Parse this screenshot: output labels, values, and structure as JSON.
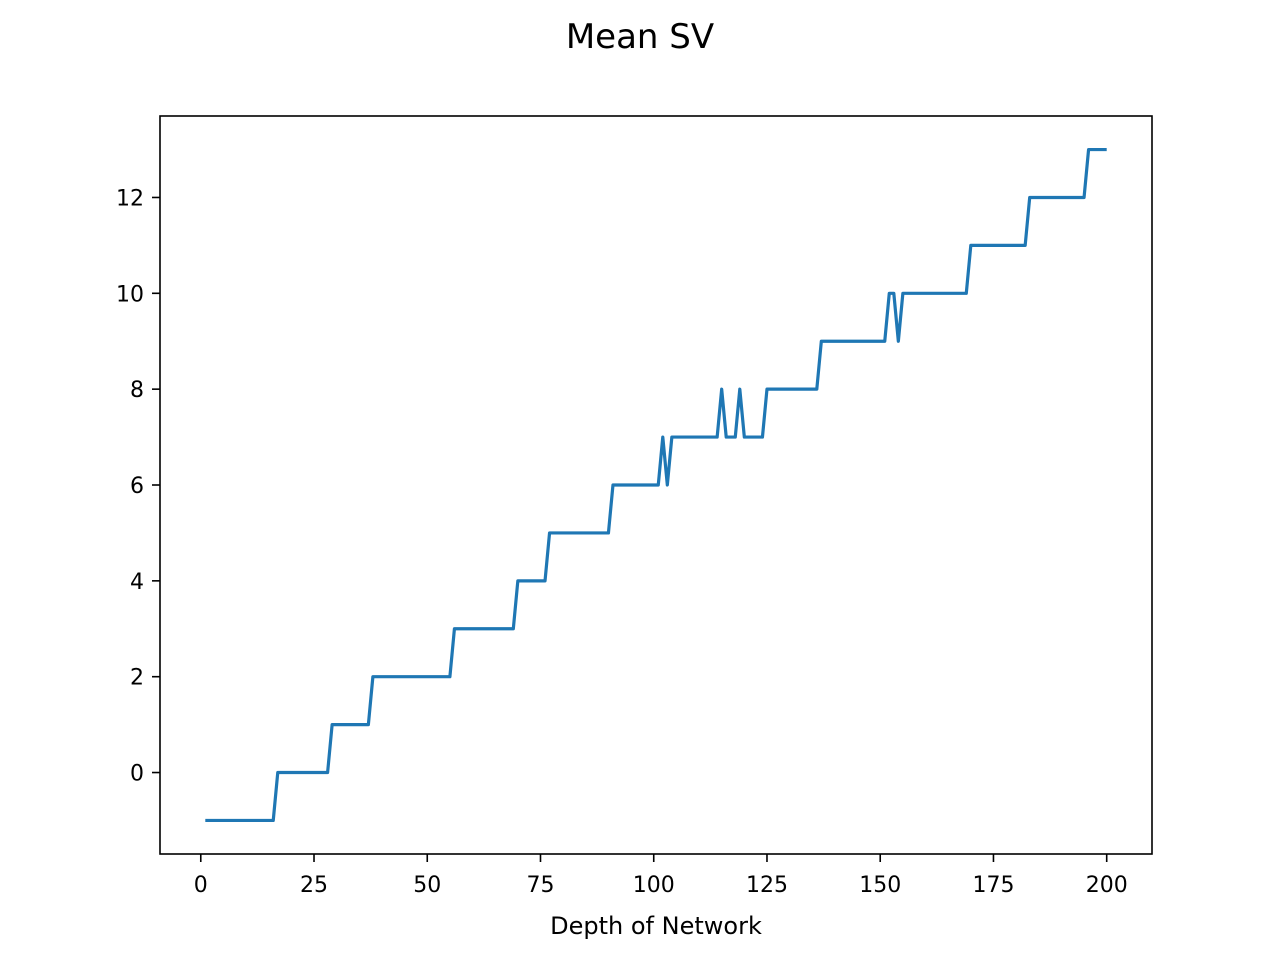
{
  "chart_data": {
    "type": "line",
    "title": "Mean SV",
    "xlabel": "Depth of Network",
    "ylabel": "",
    "xlim": [
      -9,
      210
    ],
    "ylim": [
      -1.7,
      13.7
    ],
    "xticks": [
      0,
      25,
      50,
      75,
      100,
      125,
      150,
      175,
      200
    ],
    "yticks": [
      0,
      2,
      4,
      6,
      8,
      10,
      12
    ],
    "grid": false,
    "legend": "none",
    "series": [
      {
        "color": "#1f77b4",
        "steps": [
          {
            "x": [
              1,
              16
            ],
            "y": -1
          },
          {
            "x": [
              17,
              28
            ],
            "y": 0
          },
          {
            "x": [
              29,
              37
            ],
            "y": 1
          },
          {
            "x": [
              38,
              55
            ],
            "y": 2
          },
          {
            "x": [
              56,
              69
            ],
            "y": 3
          },
          {
            "x": [
              70,
              76
            ],
            "y": 4
          },
          {
            "x": [
              77,
              90
            ],
            "y": 5
          },
          {
            "x": [
              91,
              101
            ],
            "y": 6
          },
          {
            "x": [
              102,
              102
            ],
            "y": 7
          },
          {
            "x": [
              103,
              103
            ],
            "y": 6
          },
          {
            "x": [
              104,
              114
            ],
            "y": 7
          },
          {
            "x": [
              115,
              115
            ],
            "y": 8
          },
          {
            "x": [
              116,
              118
            ],
            "y": 7
          },
          {
            "x": [
              119,
              119
            ],
            "y": 8
          },
          {
            "x": [
              120,
              124
            ],
            "y": 7
          },
          {
            "x": [
              125,
              136
            ],
            "y": 8
          },
          {
            "x": [
              137,
              151
            ],
            "y": 9
          },
          {
            "x": [
              152,
              153
            ],
            "y": 10
          },
          {
            "x": [
              154,
              154
            ],
            "y": 9
          },
          {
            "x": [
              155,
              169
            ],
            "y": 10
          },
          {
            "x": [
              170,
              182
            ],
            "y": 11
          },
          {
            "x": [
              183,
              195
            ],
            "y": 12
          },
          {
            "x": [
              196,
              200
            ],
            "y": 13
          }
        ]
      }
    ]
  }
}
